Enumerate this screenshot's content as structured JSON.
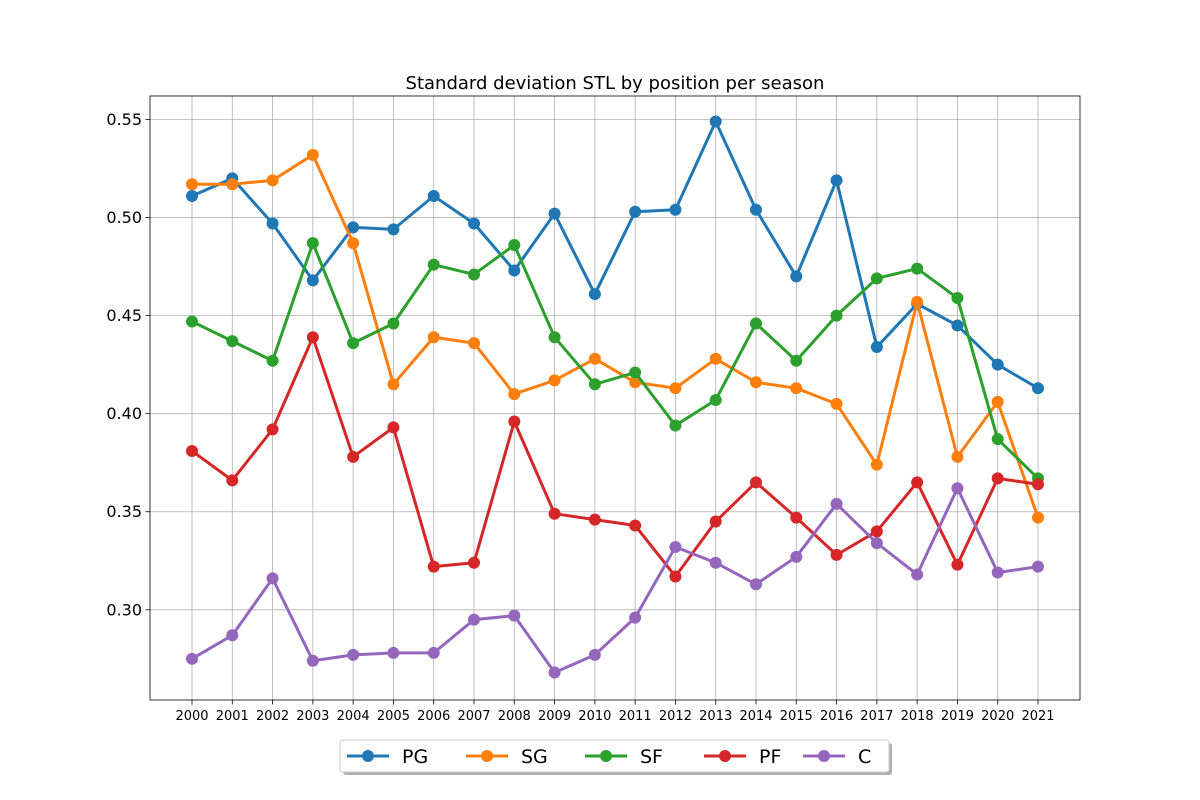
{
  "chart_data": {
    "type": "line",
    "title": "Standard deviation STL by position per season",
    "xlabel": "",
    "ylabel": "",
    "x": [
      "2000",
      "2001",
      "2002",
      "2003",
      "2004",
      "2005",
      "2006",
      "2007",
      "2008",
      "2009",
      "2010",
      "2011",
      "2012",
      "2013",
      "2014",
      "2015",
      "2016",
      "2017",
      "2018",
      "2019",
      "2020",
      "2021"
    ],
    "ylim": [
      0.254,
      0.562
    ],
    "yticks": [
      0.3,
      0.35,
      0.4,
      0.45,
      0.5,
      0.55
    ],
    "ytick_labels": [
      "0.30",
      "0.35",
      "0.40",
      "0.45",
      "0.50",
      "0.55"
    ],
    "grid": true,
    "legend_position": "bottom-center",
    "series": [
      {
        "name": "PG",
        "color": "#1f77b4",
        "values": [
          0.511,
          0.52,
          0.497,
          0.468,
          0.495,
          0.494,
          0.511,
          0.497,
          0.473,
          0.502,
          0.461,
          0.503,
          0.504,
          0.549,
          0.504,
          0.47,
          0.519,
          0.434,
          0.456,
          0.445,
          0.425,
          0.413
        ]
      },
      {
        "name": "SG",
        "color": "#ff7f0e",
        "values": [
          0.517,
          0.517,
          0.519,
          0.532,
          0.487,
          0.415,
          0.439,
          0.436,
          0.41,
          0.417,
          0.428,
          0.416,
          0.413,
          0.428,
          0.416,
          0.413,
          0.405,
          0.374,
          0.457,
          0.378,
          0.406,
          0.347
        ]
      },
      {
        "name": "SF",
        "color": "#2ca02c",
        "values": [
          0.447,
          0.437,
          0.427,
          0.487,
          0.436,
          0.446,
          0.476,
          0.471,
          0.486,
          0.439,
          0.415,
          0.421,
          0.394,
          0.407,
          0.446,
          0.427,
          0.45,
          0.469,
          0.474,
          0.459,
          0.387,
          0.367
        ]
      },
      {
        "name": "PF",
        "color": "#d62728",
        "values": [
          0.381,
          0.366,
          0.392,
          0.439,
          0.378,
          0.393,
          0.322,
          0.324,
          0.396,
          0.349,
          0.346,
          0.343,
          0.317,
          0.345,
          0.365,
          0.347,
          0.328,
          0.34,
          0.365,
          0.323,
          0.367,
          0.364
        ]
      },
      {
        "name": "C",
        "color": "#9467bd",
        "values": [
          0.275,
          0.287,
          0.316,
          0.274,
          0.277,
          0.278,
          0.278,
          0.295,
          0.297,
          0.268,
          0.277,
          0.296,
          0.332,
          0.324,
          0.313,
          0.327,
          0.354,
          0.334,
          0.318,
          0.362,
          0.319,
          0.322
        ]
      }
    ]
  }
}
